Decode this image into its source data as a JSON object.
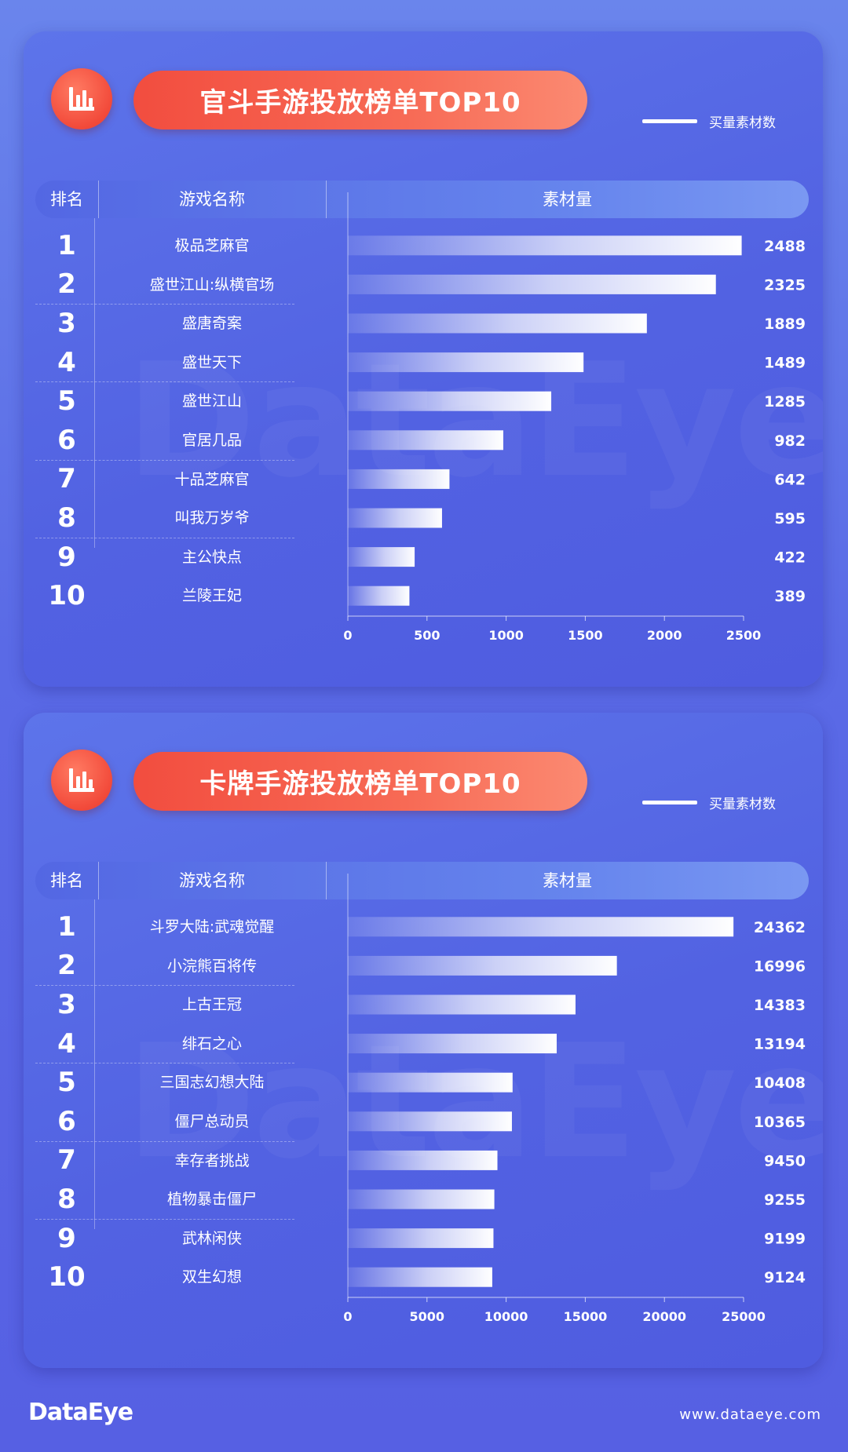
{
  "footer": {
    "logo": "DataEye",
    "url": "www.dataeye.com"
  },
  "chart_data": [
    {
      "type": "bar",
      "title": "官斗手游投放榜单TOP10",
      "legend_label": "买量素材数",
      "legend_position": "top-right",
      "columns": {
        "rank": "排名",
        "name": "游戏名称",
        "value": "素材量"
      },
      "ranks": [
        "1",
        "2",
        "3",
        "4",
        "5",
        "6",
        "7",
        "8",
        "9",
        "10"
      ],
      "categories": [
        "极品芝麻官",
        "盛世江山:纵横官场",
        "盛唐奇案",
        "盛世天下",
        "盛世江山",
        "官居几品",
        "十品芝麻官",
        "叫我万岁爷",
        "主公快点",
        "兰陵王妃"
      ],
      "values": [
        2488,
        2325,
        1889,
        1489,
        1285,
        982,
        642,
        595,
        422,
        389
      ],
      "xlim": [
        0,
        2500
      ],
      "xticks": [
        "0",
        "500",
        "1000",
        "1500",
        "2000",
        "2500"
      ],
      "grid": false,
      "bar_color": "#ffffff"
    },
    {
      "type": "bar",
      "title": "卡牌手游投放榜单TOP10",
      "legend_label": "买量素材数",
      "legend_position": "top-right",
      "columns": {
        "rank": "排名",
        "name": "游戏名称",
        "value": "素材量"
      },
      "ranks": [
        "1",
        "2",
        "3",
        "4",
        "5",
        "6",
        "7",
        "8",
        "9",
        "10"
      ],
      "categories": [
        "斗罗大陆:武魂觉醒",
        "小浣熊百将传",
        "上古王冠",
        "绯石之心",
        "三国志幻想大陆",
        "僵尸总动员",
        "幸存者挑战",
        "植物暴击僵尸",
        "武林闲侠",
        "双生幻想"
      ],
      "values": [
        24362,
        16996,
        14383,
        13194,
        10408,
        10365,
        9450,
        9255,
        9199,
        9124
      ],
      "xlim": [
        0,
        25000
      ],
      "xticks": [
        "0",
        "5000",
        "10000",
        "15000",
        "20000",
        "25000"
      ],
      "grid": false,
      "bar_color": "#ffffff"
    }
  ]
}
